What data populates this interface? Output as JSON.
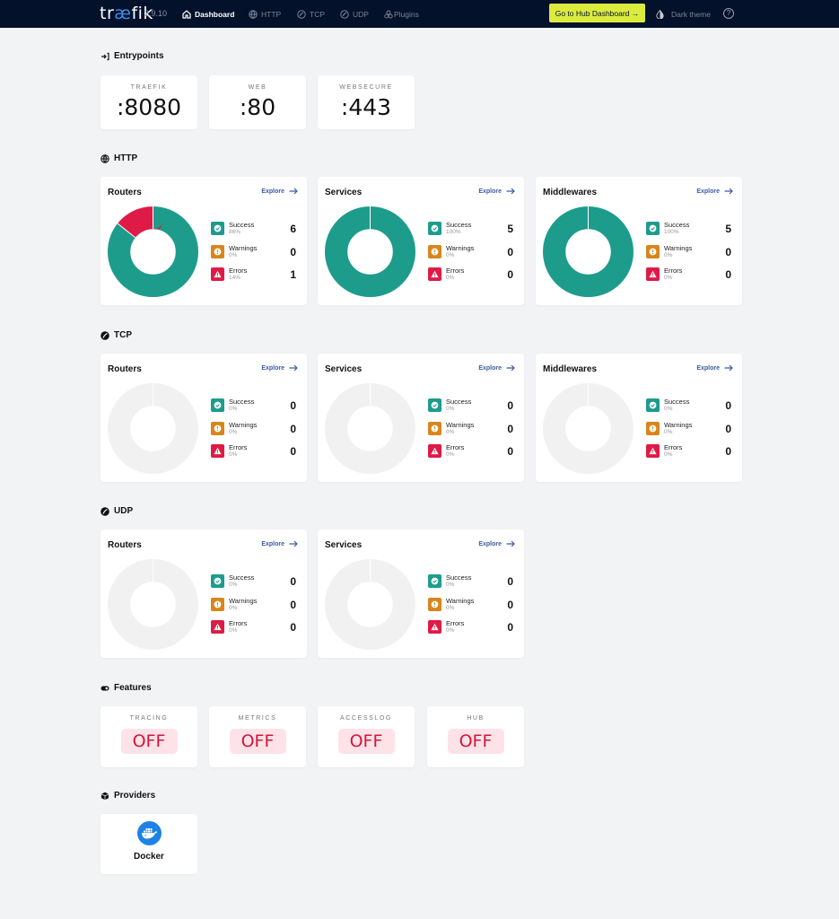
{
  "topbar": {
    "logo_pre": "tr",
    "logo_ae": "æ",
    "logo_post": "fik",
    "version": "2.9.10",
    "nav": [
      {
        "label": "Dashboard",
        "icon": "home-icon",
        "active": true
      },
      {
        "label": "HTTP",
        "icon": "globe-icon",
        "active": false
      },
      {
        "label": "TCP",
        "icon": "tcp-icon",
        "active": false
      },
      {
        "label": "UDP",
        "icon": "udp-icon",
        "active": false
      },
      {
        "label": "Plugins",
        "icon": "plugins-icon",
        "active": false
      }
    ],
    "hub_button": "Go to Hub Dashboard →",
    "dark_theme": "Dark theme",
    "help": "?"
  },
  "colors": {
    "success": "#1d9c8c",
    "warning": "#d8861b",
    "error": "#e01a46",
    "empty": "#f1f1f2",
    "accent": "#dbeb3e"
  },
  "entrypoints": {
    "title": "Entrypoints",
    "items": [
      {
        "name": "TRAEFIK",
        "port": ":8080"
      },
      {
        "name": "WEB",
        "port": ":80"
      },
      {
        "name": "WEBSECURE",
        "port": ":443"
      }
    ]
  },
  "http": {
    "title": "HTTP",
    "cards": [
      {
        "title": "Routers",
        "explore": "Explore",
        "success": {
          "label": "Success",
          "pct": "86%",
          "count": "6"
        },
        "warnings": {
          "label": "Warnings",
          "pct": "0%",
          "count": "0"
        },
        "errors": {
          "label": "Errors",
          "pct": "14%",
          "count": "1"
        }
      },
      {
        "title": "Services",
        "explore": "Explore",
        "success": {
          "label": "Success",
          "pct": "100%",
          "count": "5"
        },
        "warnings": {
          "label": "Warnings",
          "pct": "0%",
          "count": "0"
        },
        "errors": {
          "label": "Errors",
          "pct": "0%",
          "count": "0"
        }
      },
      {
        "title": "Middlewares",
        "explore": "Explore",
        "success": {
          "label": "Success",
          "pct": "100%",
          "count": "5"
        },
        "warnings": {
          "label": "Warnings",
          "pct": "0%",
          "count": "0"
        },
        "errors": {
          "label": "Errors",
          "pct": "0%",
          "count": "0"
        }
      }
    ]
  },
  "tcp": {
    "title": "TCP",
    "cards": [
      {
        "title": "Routers",
        "explore": "Explore",
        "success": {
          "label": "Success",
          "pct": "0%",
          "count": "0"
        },
        "warnings": {
          "label": "Warnings",
          "pct": "0%",
          "count": "0"
        },
        "errors": {
          "label": "Errors",
          "pct": "0%",
          "count": "0"
        }
      },
      {
        "title": "Services",
        "explore": "Explore",
        "success": {
          "label": "Success",
          "pct": "0%",
          "count": "0"
        },
        "warnings": {
          "label": "Warnings",
          "pct": "0%",
          "count": "0"
        },
        "errors": {
          "label": "Errors",
          "pct": "0%",
          "count": "0"
        }
      },
      {
        "title": "Middlewares",
        "explore": "Explore",
        "success": {
          "label": "Success",
          "pct": "0%",
          "count": "0"
        },
        "warnings": {
          "label": "Warnings",
          "pct": "0%",
          "count": "0"
        },
        "errors": {
          "label": "Errors",
          "pct": "0%",
          "count": "0"
        }
      }
    ]
  },
  "udp": {
    "title": "UDP",
    "cards": [
      {
        "title": "Routers",
        "explore": "Explore",
        "success": {
          "label": "Success",
          "pct": "0%",
          "count": "0"
        },
        "warnings": {
          "label": "Warnings",
          "pct": "0%",
          "count": "0"
        },
        "errors": {
          "label": "Errors",
          "pct": "0%",
          "count": "0"
        }
      },
      {
        "title": "Services",
        "explore": "Explore",
        "success": {
          "label": "Success",
          "pct": "0%",
          "count": "0"
        },
        "warnings": {
          "label": "Warnings",
          "pct": "0%",
          "count": "0"
        },
        "errors": {
          "label": "Errors",
          "pct": "0%",
          "count": "0"
        }
      }
    ]
  },
  "features": {
    "title": "Features",
    "items": [
      {
        "name": "TRACING",
        "status": "OFF"
      },
      {
        "name": "METRICS",
        "status": "OFF"
      },
      {
        "name": "ACCESSLOG",
        "status": "OFF"
      },
      {
        "name": "HUB",
        "status": "OFF"
      }
    ]
  },
  "providers": {
    "title": "Providers",
    "items": [
      {
        "name": "Docker",
        "icon": "docker-icon"
      }
    ]
  }
}
